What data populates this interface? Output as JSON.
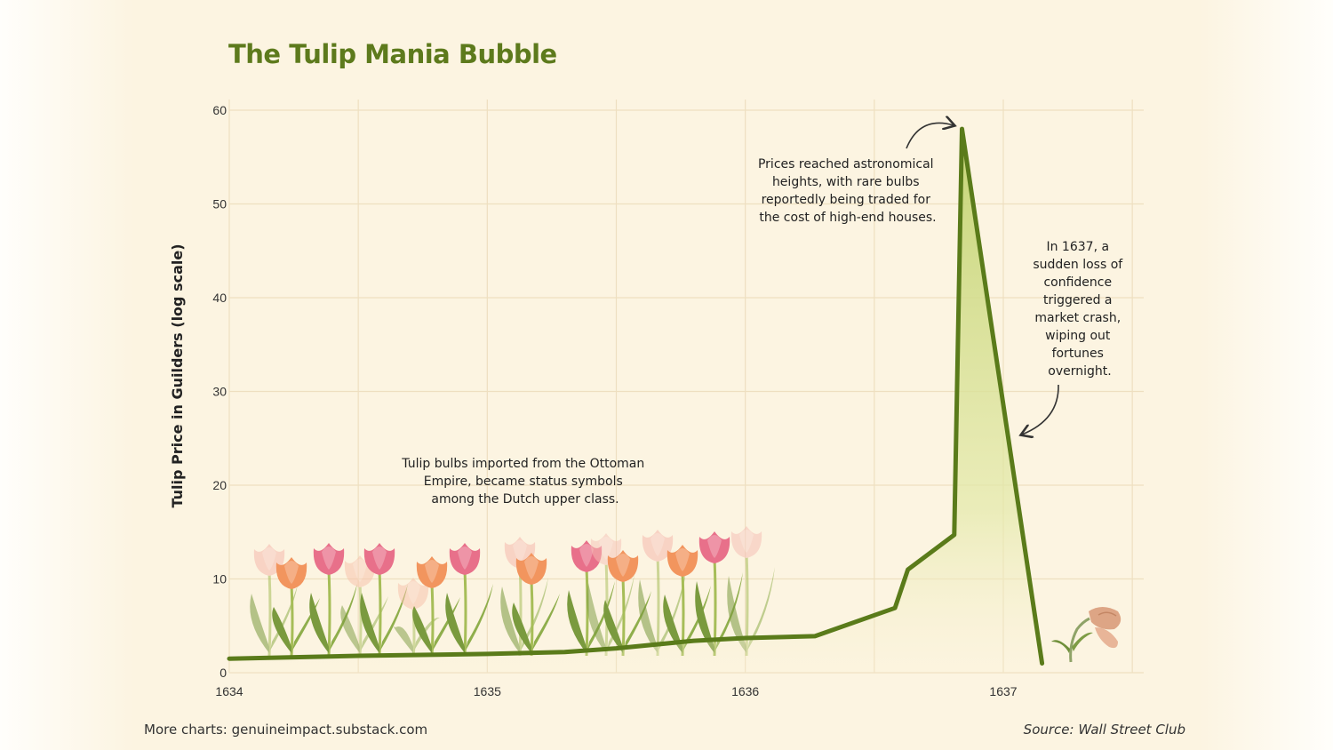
{
  "chart_data": {
    "type": "area",
    "title": "The Tulip Mania Bubble",
    "xlabel": "",
    "ylabel": "Tulip Price in Guilders (log scale)",
    "x_ticks": [
      "1634",
      "1635",
      "1636",
      "1637"
    ],
    "y_ticks": [
      "0",
      "10",
      "20",
      "30",
      "40",
      "50",
      "60"
    ],
    "xlim": [
      1634,
      1637.5
    ],
    "ylim": [
      0,
      60
    ],
    "grid": true,
    "series": [
      {
        "points": [
          [
            1634.0,
            1.5
          ],
          [
            1634.5,
            1.8
          ],
          [
            1635.0,
            2.0
          ],
          [
            1635.3,
            2.2
          ],
          [
            1635.5,
            2.6
          ],
          [
            1635.8,
            3.4
          ],
          [
            1636.0,
            3.7
          ],
          [
            1636.27,
            3.9
          ],
          [
            1636.58,
            6.9
          ],
          [
            1636.63,
            11.0
          ],
          [
            1636.81,
            14.7
          ],
          [
            1636.84,
            58.0
          ],
          [
            1637.15,
            1.0
          ]
        ]
      }
    ],
    "colors": {
      "line": "#5a7b1a",
      "area_top": "#c4d475",
      "area_bottom": "#f7f0cf",
      "grid": "#eedfc0"
    },
    "annotations": [
      {
        "lines": [
          "Tulip bulbs imported from the Ottoman",
          "Empire, became status symbols",
          "among the Dutch upper class."
        ]
      },
      {
        "lines": [
          "Prices reached astronomical",
          "heights, with rare bulbs",
          "reportedly being traded for",
          "the cost of high-end houses."
        ]
      },
      {
        "lines": [
          "In 1637, a",
          "sudden loss of",
          "confidence",
          "triggered a",
          "market crash,",
          "wiping out",
          "fortunes",
          "overnight."
        ]
      }
    ]
  },
  "decorations": {
    "tulips": "tulip-illustrations",
    "wilted_tulip": "wilted-tulip-illustration"
  },
  "footer": {
    "left": "More charts: genuineimpact.substack.com",
    "right": "Source: Wall Street Club"
  }
}
